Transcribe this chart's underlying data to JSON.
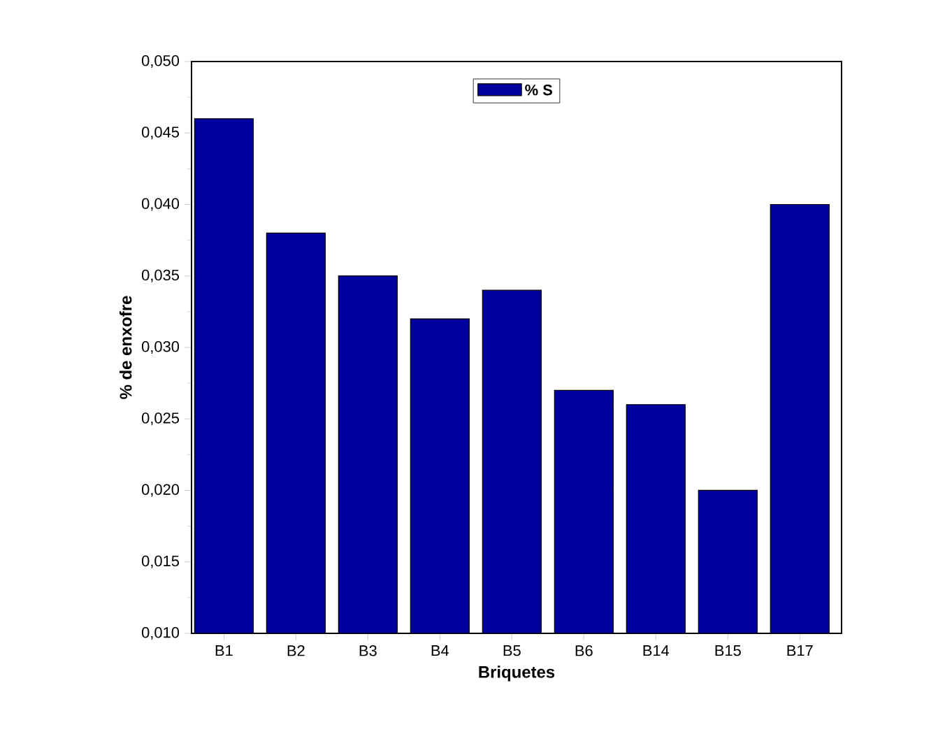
{
  "chart_data": {
    "type": "bar",
    "xlabel": "Briquetes",
    "ylabel": "% de enxofre",
    "categories": [
      "B1",
      "B2",
      "B3",
      "B4",
      "B5",
      "B6",
      "B14",
      "B15",
      "B17"
    ],
    "series": [
      {
        "name": "% S",
        "color": "#00009c",
        "values": [
          0.046,
          0.038,
          0.035,
          0.032,
          0.034,
          0.027,
          0.026,
          0.02,
          0.04
        ]
      }
    ],
    "ylim": [
      0.01,
      0.05
    ],
    "yticks": [
      {
        "value": 0.01,
        "label": "0,010"
      },
      {
        "value": 0.015,
        "label": "0,015"
      },
      {
        "value": 0.02,
        "label": "0,020"
      },
      {
        "value": 0.025,
        "label": "0,025"
      },
      {
        "value": 0.03,
        "label": "0,030"
      },
      {
        "value": 0.035,
        "label": "0,035"
      },
      {
        "value": 0.04,
        "label": "0,040"
      },
      {
        "value": 0.045,
        "label": "0,045"
      },
      {
        "value": 0.05,
        "label": "0,050"
      }
    ],
    "legend": "top",
    "grid": false
  }
}
